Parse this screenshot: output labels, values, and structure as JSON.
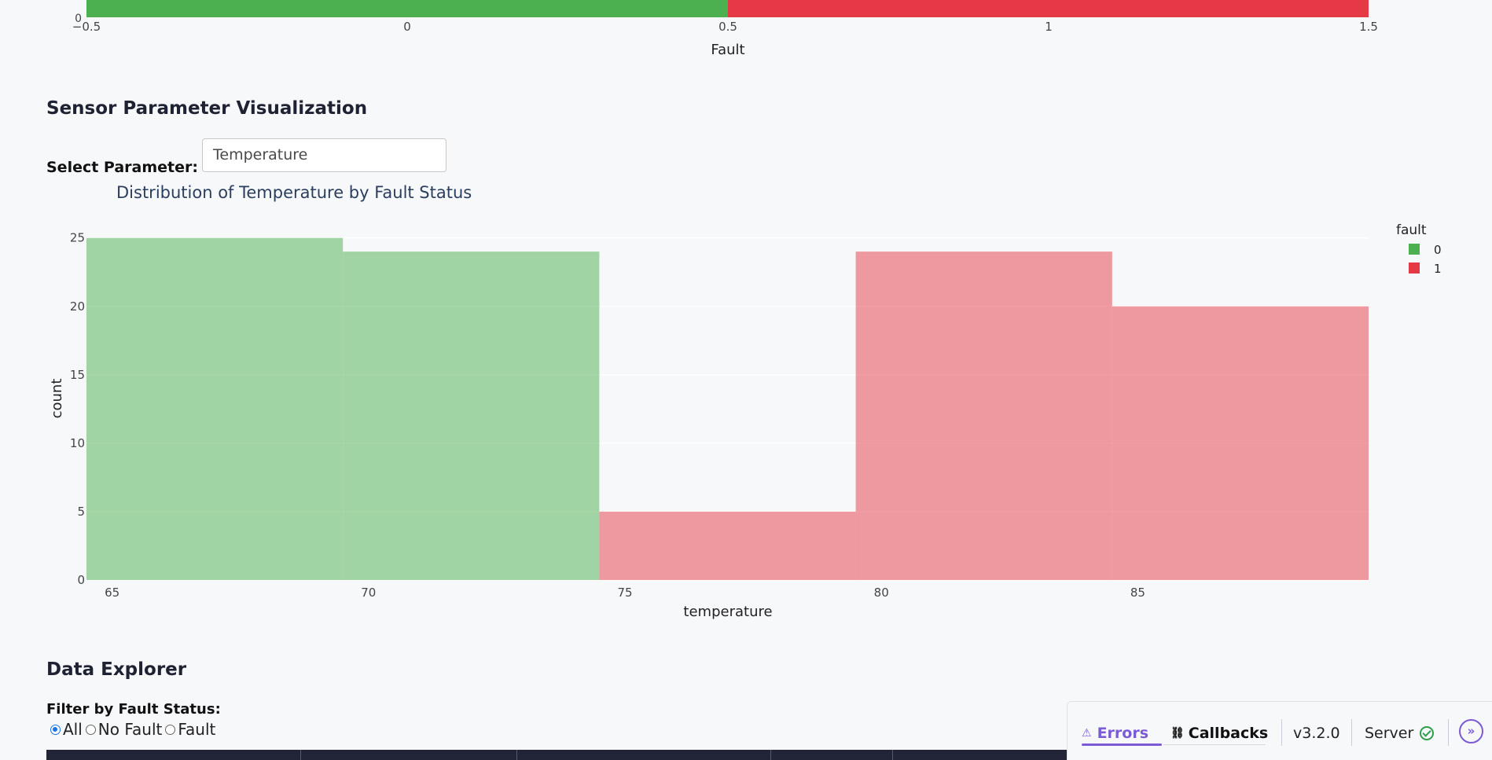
{
  "top_chart": {
    "xlabel": "Fault",
    "y_tick": "0",
    "x_ticks": [
      "−0.5",
      "0",
      "0.5",
      "1",
      "1.5"
    ],
    "bar_colors": [
      "#4caf50",
      "#e63946"
    ]
  },
  "section_sensor": {
    "title": "Sensor Parameter Visualization",
    "select_label": "Select Parameter:",
    "select_value": "Temperature"
  },
  "chart_data": {
    "type": "bar",
    "title": "Distribution of Temperature by Fault Status",
    "xlabel": "temperature",
    "ylabel": "count",
    "xlim": [
      64.5,
      89.5
    ],
    "ylim": [
      0,
      25.5
    ],
    "x_ticks": [
      "65",
      "70",
      "75",
      "80",
      "85"
    ],
    "y_ticks": [
      "0",
      "5",
      "10",
      "15",
      "20",
      "25"
    ],
    "grid": true,
    "legend_title": "fault",
    "legend_position": "top-right",
    "series": [
      {
        "name": "0",
        "color": "#4caf50",
        "bins": [
          [
            64.5,
            69.5,
            25
          ],
          [
            69.5,
            74.5,
            24
          ]
        ]
      },
      {
        "name": "1",
        "color": "#e63946",
        "bins": [
          [
            74.5,
            79.5,
            5
          ],
          [
            79.5,
            84.5,
            24
          ],
          [
            84.5,
            89.5,
            20
          ]
        ]
      }
    ]
  },
  "section_explorer": {
    "title": "Data Explorer",
    "filter_label": "Filter by Fault Status:",
    "options": [
      "All",
      "No Fault",
      "Fault"
    ],
    "selected": "All"
  },
  "devtools": {
    "errors_label": "Errors",
    "callbacks_label": "Callbacks",
    "version": "v3.2.0",
    "server_label": "Server",
    "accent": "#7b5bd6"
  }
}
